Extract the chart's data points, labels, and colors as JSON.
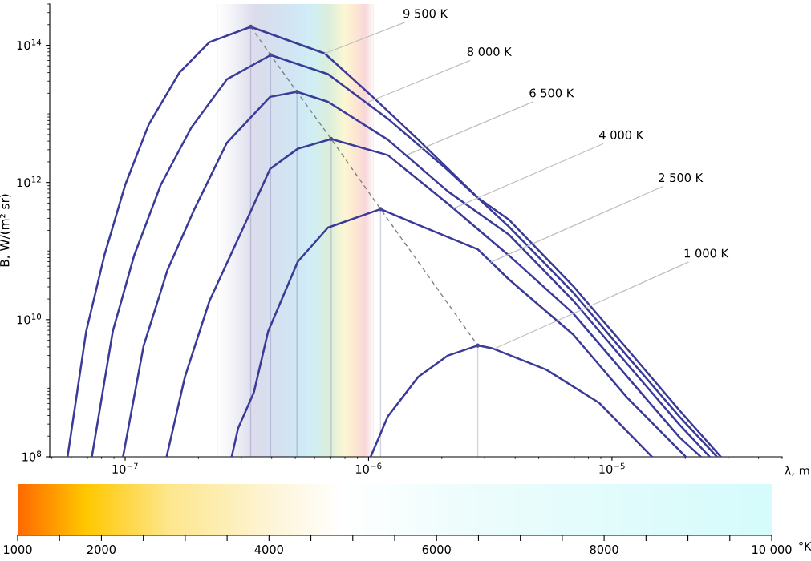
{
  "chart_data": [
    {
      "type": "line",
      "xlabel": "λ, m",
      "ylabel": "B, W/(m² sr)",
      "log": "xy",
      "grid": false,
      "legend": false,
      "xlim": [
        4.9e-08,
        5e-05
      ],
      "ylim": [
        100000000.0,
        400000000000000.0
      ],
      "xticks": [
        {
          "value": 1e-07,
          "label": "10$^{−7}$"
        },
        {
          "value": 1e-06,
          "label": "10$^{−6}$"
        },
        {
          "value": 1e-05,
          "label": "10$^{−5}$"
        }
      ],
      "yticks": [
        {
          "value": 100000000.0,
          "label": "10$^{8}$"
        },
        {
          "value": 10000000000.0,
          "label": "10$^{10}$"
        },
        {
          "value": 1000000000000.0,
          "label": "10$^{12}$"
        },
        {
          "value": 100000000000000.0,
          "label": "10$^{14}$"
        }
      ],
      "bands": [
        {
          "axis": "x",
          "from": 2.4e-07,
          "to": 1.05e-06
        }
      ],
      "series": [
        {
          "type": "line",
          "color": "#3a3a98",
          "x": [
            5.8e-08,
            6.92e-08,
            8.22e-08,
            1e-07,
            1.25e-07,
            1.67e-07,
            2.22e-07,
            3.28e-07,
            6.61e-07,
            1.04e-06,
            1.6e-06,
            2.81e-06,
            3.76e-06,
            6.92e-06,
            1.15e-05,
            1.9e-05,
            2.8e-05
          ],
          "values": [
            100000000.0,
            6800000000.0,
            87000000000.0,
            920000000000.0,
            7000000000000.0,
            40000000000000.0,
            111000000000000.0,
            186000000000000.0,
            76000000000000.0,
            17700000000000.0,
            4200000000000.0,
            600000000000.0,
            290000000000.0,
            31000000000.0,
            3800000000.0,
            470000000.0,
            100000000.0
          ]
        },
        {
          "type": "line",
          "color": "#3a3a98",
          "x": [
            7.3e-08,
            8.9e-08,
            1.09e-07,
            1.4e-07,
            1.87e-07,
            2.62e-07,
            3.96e-07,
            6.81e-07,
            1.2e-06,
            2.12e-06,
            3.76e-06,
            6.92e-06,
            1.15e-05,
            1.9e-05,
            2.7e-05
          ],
          "values": [
            100000000.0,
            6800000000.0,
            87000000000.0,
            920000000000.0,
            6300000000000.0,
            32000000000000.0,
            72000000000000.0,
            38000000000000.0,
            8500000000000.0,
            1500000000000.0,
            230000000000.0,
            25000000000.0,
            3000000000.0,
            380000000.0,
            100000000.0
          ]
        },
        {
          "type": "line",
          "color": "#3a3a98",
          "x": [
            9.8e-08,
            1.19e-07,
            1.49e-07,
            1.92e-07,
            2.62e-07,
            3.94e-07,
            5.08e-07,
            6.81e-07,
            1.2e-06,
            2.12e-06,
            3.76e-06,
            6.92e-06,
            1.15e-05,
            1.9e-05,
            2.52e-05
          ],
          "values": [
            100000000.0,
            4100000000.0,
            52000000000.0,
            400000000000.0,
            3800000000000.0,
            17700000000000.0,
            21000000000000.0,
            15000000000000.0,
            4200000000000.0,
            740000000000.0,
            175000000000.0,
            19100000000.0,
            2300000000.0,
            290000000.0,
            100000000.0
          ]
        },
        {
          "type": "line",
          "color": "#3a3a98",
          "x": [
            1.48e-07,
            1.76e-07,
            2.22e-07,
            2.93e-07,
            3.94e-07,
            5.12e-07,
            7.02e-07,
            1.2e-06,
            2.12e-06,
            3.76e-06,
            6.92e-06,
            1.15e-05,
            1.9e-05,
            2.32e-05
          ],
          "values": [
            100000000.0,
            1460000000.0,
            18700000000.0,
            158000000000.0,
            1580000000000.0,
            3100000000000.0,
            4300000000000.0,
            2500000000000.0,
            490000000000.0,
            87000000000.0,
            12400000000.0,
            1500000000.0,
            190000000.0,
            100000000.0
          ]
        },
        {
          "type": "line",
          "color": "#3a3a98",
          "x": [
            2.74e-07,
            2.91e-07,
            3.38e-07,
            3.87e-07,
            5.12e-07,
            6.81e-07,
            1.12e-06,
            1.6e-06,
            2.81e-06,
            3.76e-06,
            6.92e-06,
            1.15e-05,
            2.01e-05
          ],
          "values": [
            100000000.0,
            260000000.0,
            870000000.0,
            6800000000.0,
            70000000000.0,
            220000000000.0,
            410000000000.0,
            240000000000.0,
            106000000000.0,
            39000000000.0,
            6100000000.0,
            740000000.0,
            100000000.0
          ]
        },
        {
          "type": "line",
          "color": "#3a3a98",
          "x": [
            1.02e-06,
            1.2e-06,
            1.6e-06,
            2.12e-06,
            2.81e-06,
            3.24e-06,
            5.36e-06,
            8.87e-06,
            1.46e-05
          ],
          "values": [
            100000000.0,
            390000000.0,
            1460000000.0,
            3000000000.0,
            4200000000.0,
            3800000000.0,
            1870000000.0,
            610000000.0,
            100000000.0
          ]
        },
        {
          "type": "line",
          "color": "#808080",
          "line_style": "dashed",
          "x": [
            3.28e-07,
            3.96e-07,
            5.08e-07,
            7.02e-07,
            1.12e-06,
            2.81e-06
          ],
          "values": [
            186000000000000.0,
            72000000000000.0,
            21000000000000.0,
            4300000000000.0,
            410000000000.0,
            4200000000.0
          ]
        },
        {
          "type": "lollipop",
          "color": "#4a4a90",
          "x": [
            3.28e-07,
            3.96e-07,
            5.08e-07,
            7.02e-07,
            1.12e-06,
            2.81e-06
          ],
          "values": [
            186000000000000.0,
            72000000000000.0,
            21000000000000.0,
            4300000000000.0,
            410000000000.0,
            4200000000.0
          ]
        }
      ],
      "annotations": [
        {
          "text": "9 500 K",
          "x": 6.61e-07,
          "y": 76000000000000.0
        },
        {
          "text": "8 000 K",
          "x": 9.8e-07,
          "y": 14500000000000.0
        },
        {
          "text": "6 500 K",
          "x": 1.43e-06,
          "y": 2500000000000.0
        },
        {
          "text": "4 000 K",
          "x": 2.24e-06,
          "y": 420000000000.0
        },
        {
          "text": "2 500 K",
          "x": 3.18e-06,
          "y": 69000000000.0
        },
        {
          "text": "1 000 K",
          "x": 3.28e-06,
          "y": 3750000000.0
        }
      ],
      "clabel": "°K",
      "clim": [
        1000,
        10000
      ],
      "cticks": [
        1000,
        {
          "value": 1500,
          "label": null
        },
        2000,
        {
          "value": 2500,
          "label": null
        },
        {
          "value": 3000,
          "label": null
        },
        {
          "value": 3500,
          "label": null
        },
        4000,
        {
          "value": 4500,
          "label": null
        },
        {
          "value": 5000,
          "label": null
        },
        {
          "value": 5500,
          "label": null
        },
        6000,
        {
          "value": 6500,
          "label": null
        },
        {
          "value": 7000,
          "label": null
        },
        {
          "value": 7500,
          "label": null
        },
        8000,
        {
          "value": 8500,
          "label": null
        },
        {
          "value": 9000,
          "label": null
        },
        {
          "value": 9500,
          "label": null
        },
        {
          "value": 10000,
          "label": "10 000"
        }
      ]
    }
  ]
}
